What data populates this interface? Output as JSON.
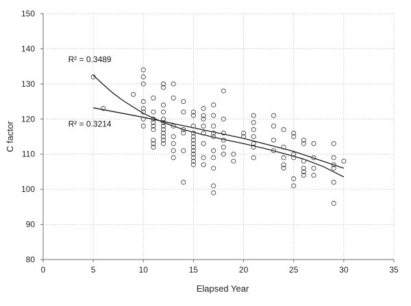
{
  "chart_data": {
    "type": "scatter",
    "title": "",
    "xlabel": "Elapsed Year",
    "ylabel": "C factor",
    "xlim": [
      0,
      35
    ],
    "ylim": [
      80,
      150
    ],
    "x_ticks": [
      0,
      5,
      10,
      15,
      20,
      25,
      30,
      35
    ],
    "y_ticks": [
      80,
      90,
      100,
      110,
      120,
      130,
      140,
      150
    ],
    "x_tick_labels": [
      "0",
      "5",
      "10",
      "15",
      "20",
      "25",
      "30",
      "35"
    ],
    "y_tick_labels": [
      "80",
      "90",
      "100",
      "110",
      "120",
      "130",
      "140",
      "150"
    ],
    "grid": true,
    "points": [
      {
        "x": 5,
        "y": 132
      },
      {
        "x": 6,
        "y": 123
      },
      {
        "x": 9,
        "y": 127
      },
      {
        "x": 10,
        "y": 134
      },
      {
        "x": 10,
        "y": 132
      },
      {
        "x": 10,
        "y": 130
      },
      {
        "x": 10,
        "y": 125
      },
      {
        "x": 10,
        "y": 123
      },
      {
        "x": 10,
        "y": 122
      },
      {
        "x": 10,
        "y": 120
      },
      {
        "x": 10,
        "y": 118
      },
      {
        "x": 11,
        "y": 126
      },
      {
        "x": 11,
        "y": 122
      },
      {
        "x": 11,
        "y": 120
      },
      {
        "x": 11,
        "y": 119
      },
      {
        "x": 11,
        "y": 118
      },
      {
        "x": 11,
        "y": 117
      },
      {
        "x": 11,
        "y": 114
      },
      {
        "x": 11,
        "y": 113
      },
      {
        "x": 11,
        "y": 112
      },
      {
        "x": 12,
        "y": 130
      },
      {
        "x": 12,
        "y": 129
      },
      {
        "x": 12,
        "y": 124
      },
      {
        "x": 12,
        "y": 122
      },
      {
        "x": 12,
        "y": 120
      },
      {
        "x": 12,
        "y": 119
      },
      {
        "x": 12,
        "y": 118
      },
      {
        "x": 12,
        "y": 117
      },
      {
        "x": 12,
        "y": 116
      },
      {
        "x": 12,
        "y": 115
      },
      {
        "x": 12,
        "y": 114
      },
      {
        "x": 12,
        "y": 113
      },
      {
        "x": 13,
        "y": 130
      },
      {
        "x": 13,
        "y": 126
      },
      {
        "x": 13,
        "y": 118
      },
      {
        "x": 13,
        "y": 115
      },
      {
        "x": 13,
        "y": 113
      },
      {
        "x": 13,
        "y": 111
      },
      {
        "x": 13,
        "y": 109
      },
      {
        "x": 14,
        "y": 125
      },
      {
        "x": 14,
        "y": 122
      },
      {
        "x": 14,
        "y": 117
      },
      {
        "x": 14,
        "y": 116
      },
      {
        "x": 14,
        "y": 111
      },
      {
        "x": 14,
        "y": 102
      },
      {
        "x": 15,
        "y": 122
      },
      {
        "x": 15,
        "y": 121
      },
      {
        "x": 15,
        "y": 118
      },
      {
        "x": 15,
        "y": 116
      },
      {
        "x": 15,
        "y": 115
      },
      {
        "x": 15,
        "y": 114
      },
      {
        "x": 15,
        "y": 113
      },
      {
        "x": 15,
        "y": 112
      },
      {
        "x": 15,
        "y": 111
      },
      {
        "x": 15,
        "y": 110
      },
      {
        "x": 15,
        "y": 109
      },
      {
        "x": 15,
        "y": 108
      },
      {
        "x": 15,
        "y": 107
      },
      {
        "x": 16,
        "y": 123
      },
      {
        "x": 16,
        "y": 121
      },
      {
        "x": 16,
        "y": 120
      },
      {
        "x": 16,
        "y": 118
      },
      {
        "x": 16,
        "y": 116
      },
      {
        "x": 16,
        "y": 113
      },
      {
        "x": 16,
        "y": 109
      },
      {
        "x": 16,
        "y": 107
      },
      {
        "x": 17,
        "y": 124
      },
      {
        "x": 17,
        "y": 121
      },
      {
        "x": 17,
        "y": 118
      },
      {
        "x": 17,
        "y": 116
      },
      {
        "x": 17,
        "y": 115
      },
      {
        "x": 17,
        "y": 111
      },
      {
        "x": 17,
        "y": 109
      },
      {
        "x": 17,
        "y": 106
      },
      {
        "x": 17,
        "y": 101
      },
      {
        "x": 17,
        "y": 99
      },
      {
        "x": 18,
        "y": 128
      },
      {
        "x": 18,
        "y": 120
      },
      {
        "x": 18,
        "y": 116
      },
      {
        "x": 18,
        "y": 114
      },
      {
        "x": 18,
        "y": 112
      },
      {
        "x": 18,
        "y": 110
      },
      {
        "x": 19,
        "y": 110
      },
      {
        "x": 19,
        "y": 108
      },
      {
        "x": 20,
        "y": 116
      },
      {
        "x": 20,
        "y": 115
      },
      {
        "x": 21,
        "y": 121
      },
      {
        "x": 21,
        "y": 119
      },
      {
        "x": 21,
        "y": 117
      },
      {
        "x": 21,
        "y": 115
      },
      {
        "x": 21,
        "y": 113
      },
      {
        "x": 21,
        "y": 112
      },
      {
        "x": 21,
        "y": 109
      },
      {
        "x": 23,
        "y": 121
      },
      {
        "x": 23,
        "y": 118
      },
      {
        "x": 23,
        "y": 114
      },
      {
        "x": 23,
        "y": 111
      },
      {
        "x": 24,
        "y": 117
      },
      {
        "x": 24,
        "y": 112
      },
      {
        "x": 24,
        "y": 109
      },
      {
        "x": 24,
        "y": 107
      },
      {
        "x": 24,
        "y": 106
      },
      {
        "x": 25,
        "y": 116
      },
      {
        "x": 25,
        "y": 115
      },
      {
        "x": 25,
        "y": 110
      },
      {
        "x": 25,
        "y": 109
      },
      {
        "x": 25,
        "y": 103
      },
      {
        "x": 25,
        "y": 101
      },
      {
        "x": 26,
        "y": 114
      },
      {
        "x": 26,
        "y": 113
      },
      {
        "x": 26,
        "y": 108
      },
      {
        "x": 26,
        "y": 106
      },
      {
        "x": 26,
        "y": 105
      },
      {
        "x": 26,
        "y": 104
      },
      {
        "x": 27,
        "y": 113
      },
      {
        "x": 27,
        "y": 109
      },
      {
        "x": 27,
        "y": 106
      },
      {
        "x": 27,
        "y": 104
      },
      {
        "x": 29,
        "y": 113
      },
      {
        "x": 29,
        "y": 109
      },
      {
        "x": 29,
        "y": 107
      },
      {
        "x": 29,
        "y": 106
      },
      {
        "x": 29,
        "y": 102
      },
      {
        "x": 29,
        "y": 96
      },
      {
        "x": 30,
        "y": 108
      }
    ],
    "trendlines": [
      {
        "name": "curve",
        "r2_label": "R² = 0.3489",
        "points": [
          [
            5,
            132.5
          ],
          [
            6,
            129.8
          ],
          [
            7,
            127.3
          ],
          [
            8,
            125.2
          ],
          [
            10,
            121.6
          ],
          [
            12,
            119.0
          ],
          [
            14,
            117.0
          ],
          [
            16,
            115.5
          ],
          [
            18,
            114.2
          ],
          [
            20,
            113.0
          ],
          [
            22,
            111.7
          ],
          [
            24,
            110.2
          ],
          [
            26,
            108.6
          ],
          [
            28,
            106.4
          ],
          [
            30,
            103.5
          ]
        ]
      },
      {
        "name": "linear",
        "r2_label": "R² = 0.3214",
        "points": [
          [
            5,
            123.2
          ],
          [
            10,
            120.5
          ],
          [
            15,
            117.5
          ],
          [
            20,
            114.5
          ],
          [
            25,
            110.8
          ],
          [
            30,
            106.0
          ]
        ]
      }
    ],
    "r2_labels": [
      {
        "text": "R² = 0.3489",
        "at": [
          2.5,
          136.2
        ]
      },
      {
        "text": "R² = 0.3214",
        "at": [
          2.5,
          117.8
        ]
      }
    ]
  }
}
